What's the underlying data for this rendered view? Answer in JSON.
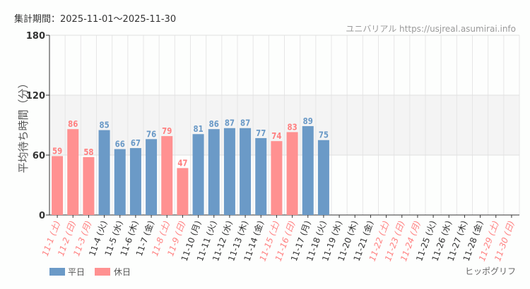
{
  "period_label": "集計期間：2025-11-01〜2025-11-30",
  "site_credit": "ユニバリアル  https://usjreal.asumirai.info",
  "attraction_name": "ヒッポグリフ",
  "colors": {
    "weekday": "#6b9ac7",
    "holiday": "#ff9191",
    "holiday_text": "#ff8080",
    "band": "#f4f4f4"
  },
  "chart_data": {
    "type": "bar",
    "ylabel": "平均待ち時間（分）",
    "ylim": [
      0,
      180
    ],
    "yticks": [
      0,
      60,
      120,
      180
    ],
    "grid": true,
    "legend_placement": "bottom-left",
    "legend": [
      {
        "name": "平日",
        "key": "weekday"
      },
      {
        "name": "休日",
        "key": "holiday"
      }
    ],
    "categories": [
      "11-1 (土)",
      "11-2 (日)",
      "11-3 (月)",
      "11-4 (火)",
      "11-5 (水)",
      "11-6 (木)",
      "11-7 (金)",
      "11-8 (土)",
      "11-9 (日)",
      "11-10 (月)",
      "11-11 (火)",
      "11-12 (水)",
      "11-13 (木)",
      "11-14 (金)",
      "11-15 (土)",
      "11-16 (日)",
      "11-17 (月)",
      "11-18 (火)",
      "11-19 (水)",
      "11-20 (木)",
      "11-21 (金)",
      "11-22 (土)",
      "11-23 (日)",
      "11-24 (月)",
      "11-25 (火)",
      "11-26 (水)",
      "11-27 (木)",
      "11-28 (金)",
      "11-29 (土)",
      "11-30 (日)"
    ],
    "holiday": [
      true,
      true,
      true,
      false,
      false,
      false,
      false,
      true,
      true,
      false,
      false,
      false,
      false,
      false,
      true,
      true,
      false,
      false,
      false,
      false,
      false,
      true,
      true,
      true,
      false,
      false,
      false,
      false,
      true,
      true
    ],
    "values": [
      59,
      86,
      58,
      85,
      66,
      67,
      76,
      79,
      47,
      81,
      86,
      87,
      87,
      77,
      74,
      83,
      89,
      75,
      null,
      null,
      null,
      null,
      null,
      null,
      null,
      null,
      null,
      null,
      null,
      null
    ]
  }
}
